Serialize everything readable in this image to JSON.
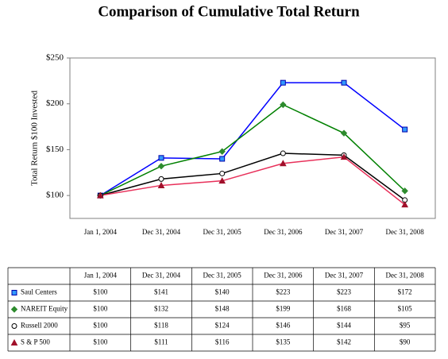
{
  "chart_data": {
    "type": "line",
    "title": "Comparison of Cumulative Total Return",
    "y_label": "Total Return $100 Invested",
    "categories": [
      "Jan 1, 2004",
      "Dec 31, 2004",
      "Dec 31, 2005",
      "Dec 31, 2006",
      "Dec 31, 2007",
      "Dec 31, 2008"
    ],
    "ylim": [
      75,
      250
    ],
    "yticks": [
      {
        "value": 100,
        "label": "$100"
      },
      {
        "value": 150,
        "label": "$150"
      },
      {
        "value": 200,
        "label": "$200"
      },
      {
        "value": 250,
        "label": "$250"
      }
    ],
    "grid": false,
    "series": [
      {
        "name": "Saul Centers",
        "color": "#0000ff",
        "marker": "square",
        "marker_color": "#3399ff",
        "values": [
          100,
          141,
          140,
          223,
          223,
          172
        ],
        "value_labels": [
          "$100",
          "$141",
          "$140",
          "$223",
          "$223",
          "$172"
        ]
      },
      {
        "name": "NAREIT Equity",
        "color": "#008000",
        "marker": "diamond",
        "marker_color": "#2e8b2e",
        "values": [
          100,
          132,
          148,
          199,
          168,
          105
        ],
        "value_labels": [
          "$100",
          "$132",
          "$148",
          "$199",
          "$168",
          "$105"
        ]
      },
      {
        "name": "Russell 2000",
        "color": "#000000",
        "marker": "circle",
        "marker_color": "#ffffff",
        "values": [
          100,
          118,
          124,
          146,
          144,
          95
        ],
        "value_labels": [
          "$100",
          "$118",
          "$124",
          "$146",
          "$144",
          "$95"
        ]
      },
      {
        "name": "S & P 500",
        "color": "#e8305a",
        "marker": "triangle",
        "marker_color": "#a0102a",
        "values": [
          100,
          111,
          116,
          135,
          142,
          90
        ],
        "value_labels": [
          "$100",
          "$111",
          "$116",
          "$135",
          "$142",
          "$90"
        ]
      }
    ]
  }
}
